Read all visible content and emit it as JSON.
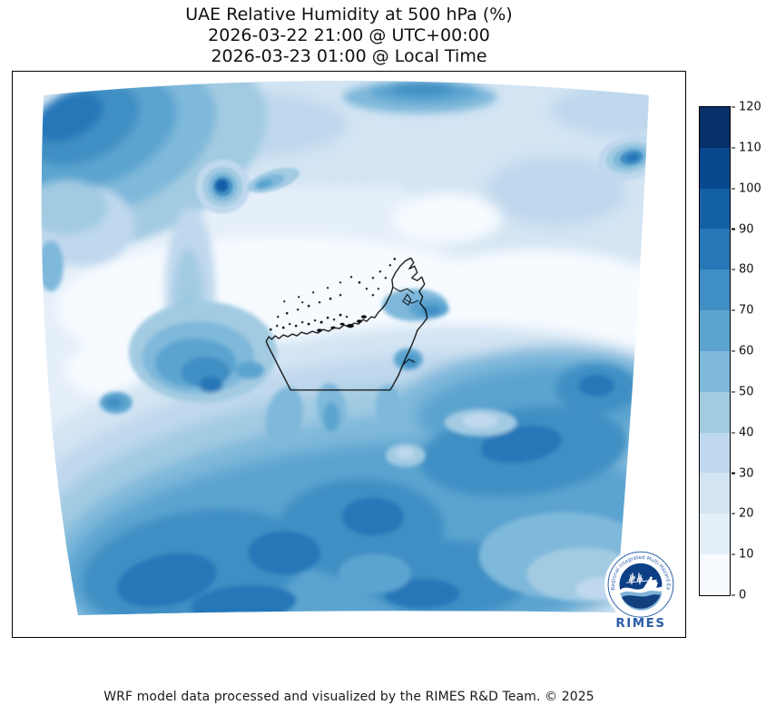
{
  "title": {
    "line1": "UAE Relative Humidity at 500 hPa (%)",
    "line2": "2026-03-22 21:00 @ UTC+00:00",
    "line3": "2026-03-23 01:00 @ Local Time"
  },
  "footer": "WRF model data processed and visualized by the RIMES R&D Team. © 2025",
  "logo": {
    "name": "RIMES",
    "ring_text": "Regional Integrated Multi-Hazard Early Warning System",
    "accent_color": "#2b5fa8"
  },
  "colorbar": {
    "min": 0,
    "max": 120,
    "step": 10,
    "tick_labels": [
      "0",
      "10",
      "20",
      "30",
      "40",
      "50",
      "60",
      "70",
      "80",
      "90",
      "100",
      "110",
      "120"
    ],
    "colors_low_to_high": [
      "#f7fbff",
      "#e5eff9",
      "#d3e4f3",
      "#bfd8ed",
      "#a2cbe2",
      "#7eb8da",
      "#5ca4d0",
      "#3f8fc4",
      "#2777b8",
      "#1360a7",
      "#08488f",
      "#08306b"
    ]
  },
  "chart_data": {
    "type": "heatmap",
    "variable": "Relative Humidity",
    "pressure_level_hPa": 500,
    "units": "%",
    "title": "UAE Relative Humidity at 500 hPa (%)",
    "valid_time_utc": "2026-03-22 21:00",
    "valid_time_local": "2026-03-23 01:00",
    "region_outline": "United Arab Emirates coastline and borders with island points",
    "colormap": "Blues, 12 discrete filled-contour bands",
    "contour_levels": [
      0,
      10,
      20,
      30,
      40,
      50,
      60,
      70,
      80,
      90,
      100,
      110,
      120
    ],
    "colorbar_range": [
      0,
      120
    ],
    "legend_position": "right",
    "grid_note": "Approximate RH (%) sampled on a 10x9 grid over the rotated WRF domain, rows listed north to south, columns west to east; values estimated from the filled contours.",
    "approx_rh_grid_north_to_south": [
      [
        75,
        55,
        40,
        35,
        30,
        25,
        25,
        25,
        20,
        15
      ],
      [
        55,
        35,
        30,
        85,
        30,
        20,
        20,
        25,
        20,
        65
      ],
      [
        30,
        25,
        50,
        30,
        15,
        10,
        10,
        15,
        15,
        20
      ],
      [
        15,
        20,
        55,
        20,
        8,
        5,
        8,
        25,
        35,
        30
      ],
      [
        12,
        25,
        75,
        50,
        10,
        10,
        25,
        55,
        70,
        70
      ],
      [
        20,
        35,
        55,
        65,
        50,
        45,
        60,
        75,
        75,
        65
      ],
      [
        35,
        60,
        70,
        75,
        80,
        70,
        70,
        65,
        55,
        45
      ],
      [
        55,
        80,
        75,
        80,
        85,
        80,
        70,
        55,
        45,
        40
      ],
      [
        65,
        85,
        80,
        85,
        80,
        80,
        75,
        60,
        50,
        45
      ]
    ],
    "notable_features": [
      "High-RH dark blob in far northwest corner of domain (~75-90%)",
      "Small concentric high-RH spot north of UAE (~85%) with halo",
      "Concentric high-RH spot at right (east) domain edge (~80%)",
      "Very dry band (0-10%) across domain center including UAE coast",
      "Broad moist air mass (60-90%) covering southern half of domain"
    ]
  }
}
